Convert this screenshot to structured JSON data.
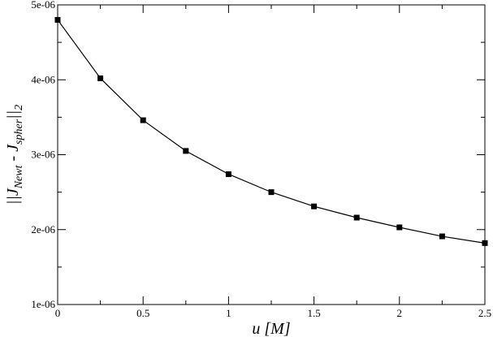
{
  "chart_data": {
    "type": "line",
    "xlabel": "u [M]",
    "ylabel": {
      "prefix": "||J",
      "sub1": "Newt",
      "middle": " - J",
      "sub2": "spher",
      "suffix": "||",
      "sub3": "2"
    },
    "xlim": [
      0,
      2.5
    ],
    "ylim": [
      1e-06,
      5e-06
    ],
    "x_ticks": [
      0,
      0.5,
      1,
      1.5,
      2,
      2.5
    ],
    "x_tick_labels": [
      "0",
      "0.5",
      "1",
      "1.5",
      "2",
      "2.5"
    ],
    "y_ticks": [
      1e-06,
      2e-06,
      3e-06,
      4e-06,
      5e-06
    ],
    "y_tick_labels": [
      "1e-06",
      "2e-06",
      "3e-06",
      "4e-06",
      "5e-06"
    ],
    "grid": false,
    "legend": false,
    "series": [
      {
        "x": [
          0,
          0.25,
          0.5,
          0.75,
          1.0,
          1.25,
          1.5,
          1.75,
          2.0,
          2.25,
          2.5
        ],
        "y": [
          4.8e-06,
          4.02e-06,
          3.46e-06,
          3.05e-06,
          2.74e-06,
          2.5e-06,
          2.31e-06,
          2.16e-06,
          2.03e-06,
          1.91e-06,
          1.82e-06
        ],
        "color": "#000000",
        "marker": "square"
      }
    ]
  }
}
